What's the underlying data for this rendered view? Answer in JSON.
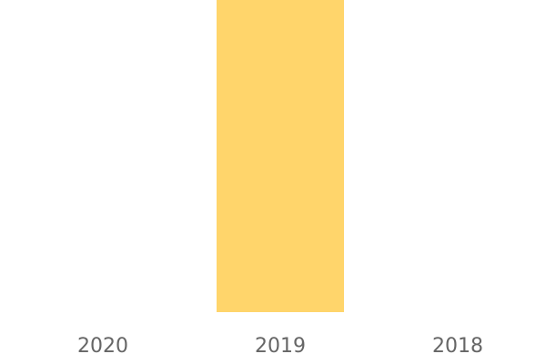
{
  "chart_data": {
    "type": "bar",
    "categories": [
      "2020",
      "2019",
      "2018"
    ],
    "values": [
      0,
      100,
      0
    ],
    "ylim": [
      0,
      100
    ],
    "title": "",
    "xlabel": "",
    "ylabel": "",
    "grid": false,
    "bar_color": "#FFD56B",
    "tick_color": "#666666"
  }
}
